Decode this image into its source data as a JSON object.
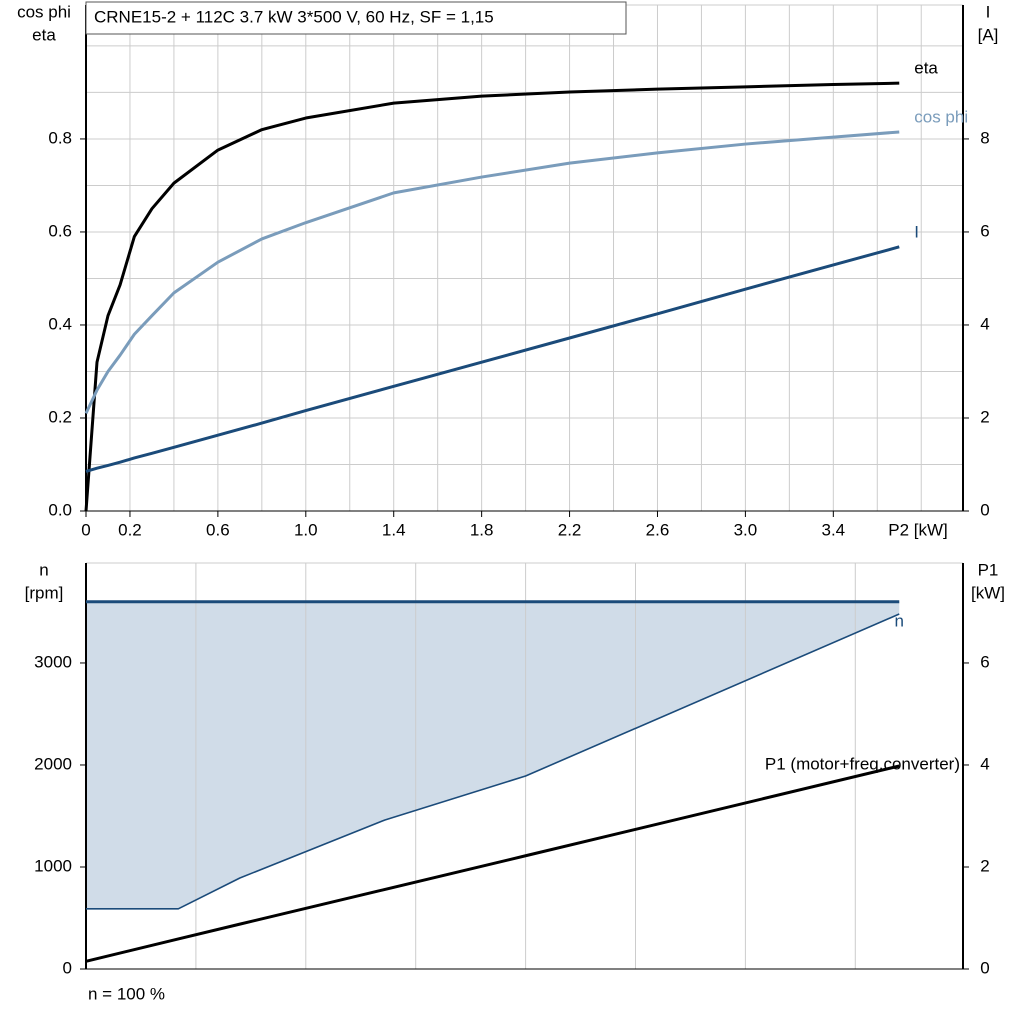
{
  "chart_data": [
    {
      "type": "line",
      "title": "CRNE15-2 + 112C   3.7 kW   3*500 V, 60 Hz, SF = 1,15",
      "ylabel": [
        "cos phi",
        "eta"
      ],
      "y2label": [
        "I",
        "[A]"
      ],
      "xlabel": "P2 [kW]",
      "x": [
        0,
        0.05,
        0.1,
        0.155,
        0.22,
        0.3,
        0.4,
        0.6,
        0.8,
        1.0,
        1.4,
        1.8,
        2.2,
        2.6,
        3.0,
        3.4,
        3.7
      ],
      "series": [
        {
          "name": "eta",
          "color": "#000000",
          "values": [
            0,
            0.32,
            0.42,
            0.486,
            0.59,
            0.65,
            0.705,
            0.776,
            0.82,
            0.845,
            0.877,
            0.892,
            0.901,
            0.907,
            0.912,
            0.917,
            0.92
          ]
        },
        {
          "name": "cos phi",
          "color": "#7a9cbb",
          "values": [
            0.21,
            0.26,
            0.3,
            0.335,
            0.38,
            0.42,
            0.469,
            0.535,
            0.585,
            0.62,
            0.684,
            0.718,
            0.748,
            0.77,
            0.789,
            0.804,
            0.815
          ]
        },
        {
          "name": "I",
          "color": "#1b4b7a",
          "axis": "y2",
          "values": [
            0.85,
            0.92,
            0.98,
            1.05,
            1.14,
            1.24,
            1.37,
            1.63,
            1.89,
            2.16,
            2.68,
            3.2,
            3.72,
            4.24,
            4.77,
            5.29,
            5.68
          ]
        }
      ],
      "xlim": [
        0,
        3.99
      ],
      "xticks": [
        0,
        0.2,
        0.6,
        {
          "value": 1,
          "label": "1.0"
        },
        1.4,
        1.8,
        2.2,
        2.6,
        {
          "value": 3,
          "label": "3.0"
        },
        3.4
      ],
      "ylim": [
        0,
        1.088
      ],
      "yticks": [
        {
          "value": 0,
          "label": "0.0"
        },
        0.2,
        0.4,
        0.6,
        0.8
      ],
      "y2lim": [
        0,
        10.88
      ],
      "y2ticks": [
        0,
        2,
        4,
        6,
        8
      ],
      "grid": true,
      "grid_step_x": 0.2,
      "grid_step_y": 0.1
    },
    {
      "type": "line",
      "ylabel": [
        "n",
        "[rpm]"
      ],
      "y2label": [
        "P1",
        "[kW]"
      ],
      "annotation": "n = 100 %",
      "x": [
        0,
        0.42,
        0.7,
        1.36,
        2.0,
        3.7
      ],
      "series": [
        {
          "name": "n",
          "color": "#1b4b7a",
          "values": [
            590,
            590,
            892,
            1461,
            1892,
            3480
          ]
        },
        {
          "color": "#1b4b7a",
          "values": [
            3600,
            3600,
            3600,
            3600,
            3600,
            3600
          ]
        },
        {
          "name": "P1 (motor+freq.converter)",
          "color": "#000000",
          "axis": "y2",
          "values": [
            0.15,
            0.59,
            0.88,
            1.56,
            2.22,
            3.98
          ]
        }
      ],
      "band": true,
      "band_color": "#d0dce8",
      "xlim": [
        0,
        3.99
      ],
      "ylim": [
        0,
        3980
      ],
      "yticks": [
        0,
        1000,
        2000,
        3000
      ],
      "y2lim": [
        0,
        7.96
      ],
      "y2ticks": [
        0,
        2,
        4,
        6
      ],
      "grid": true,
      "grid_step_x": 0.5
    }
  ]
}
